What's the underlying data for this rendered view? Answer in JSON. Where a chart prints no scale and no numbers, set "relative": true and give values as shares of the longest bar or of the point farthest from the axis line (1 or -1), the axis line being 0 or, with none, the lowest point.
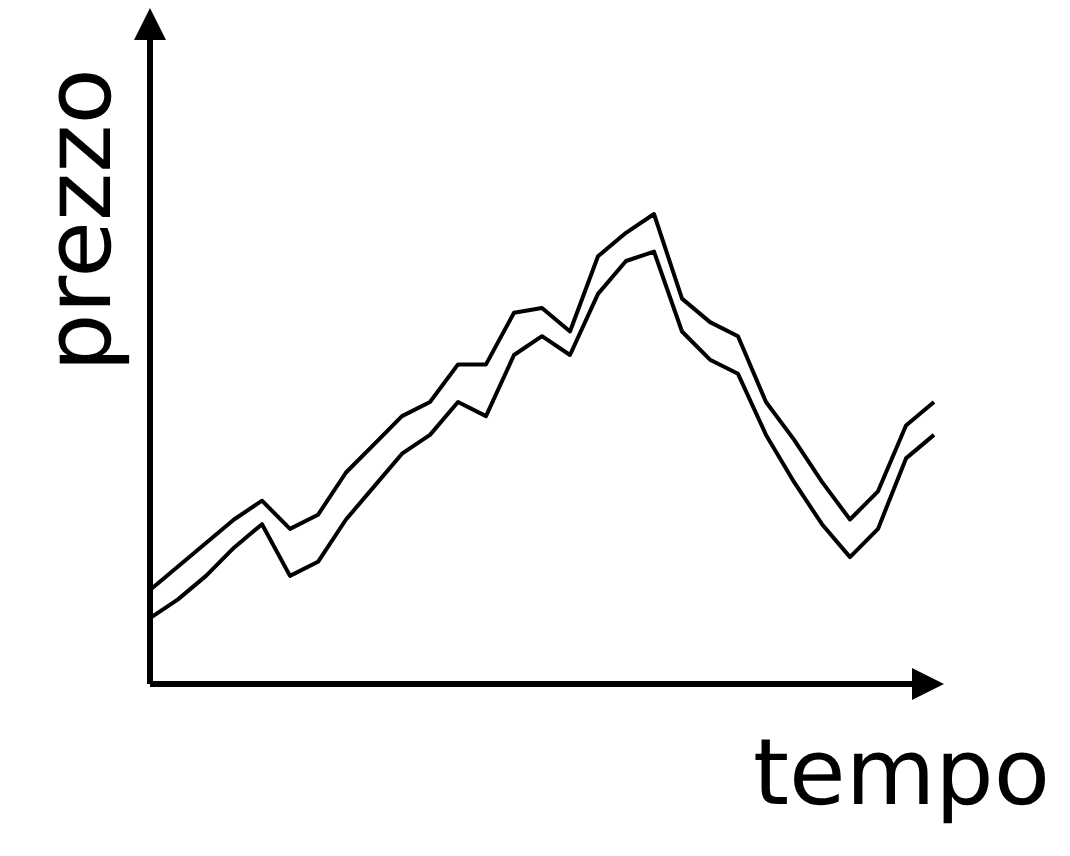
{
  "chart_data": {
    "type": "line",
    "relative": true,
    "xlabel": "tempo",
    "ylabel": "prezzo",
    "marker": "none",
    "line_style": "solid",
    "categories": [
      null,
      null,
      null,
      null,
      null,
      null,
      null,
      null,
      null,
      null,
      null,
      null,
      null,
      null,
      null,
      null,
      null,
      null,
      null,
      null,
      null,
      null,
      null,
      null,
      null,
      null,
      null,
      null,
      null
    ],
    "series": [
      {
        "color": "#000000",
        "values": [
          0.2,
          0.25,
          0.3,
          0.35,
          0.39,
          0.33,
          0.36,
          0.45,
          0.51,
          0.57,
          0.6,
          0.68,
          0.68,
          0.79,
          0.8,
          0.75,
          0.91,
          0.96,
          1,
          0.82,
          0.77,
          0.74,
          0.6,
          0.52,
          0.43,
          0.35,
          0.41,
          0.55,
          0.6
        ]
      },
      {
        "color": "#000000",
        "values": [
          0.14,
          0.18,
          0.23,
          0.29,
          0.34,
          0.23,
          0.26,
          0.35,
          0.42,
          0.49,
          0.53,
          0.6,
          0.57,
          0.7,
          0.74,
          0.7,
          0.83,
          0.9,
          0.92,
          0.75,
          0.69,
          0.66,
          0.53,
          0.43,
          0.34,
          0.27,
          0.33,
          0.48,
          0.53
        ]
      }
    ]
  }
}
